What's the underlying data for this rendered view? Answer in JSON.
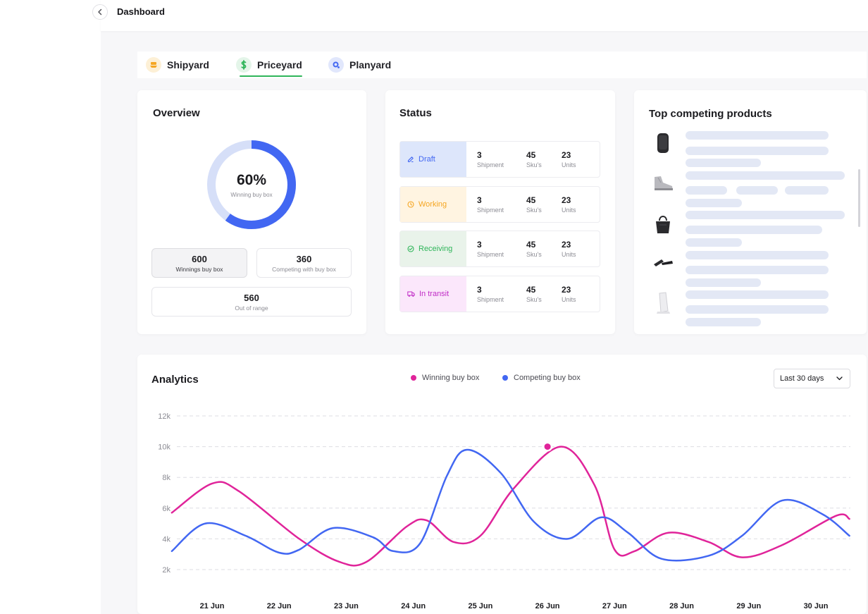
{
  "header": {
    "title": "Dashboard"
  },
  "tabs": [
    {
      "label": "Shipyard",
      "icon": "ship-icon",
      "color": "#f5a623"
    },
    {
      "label": "Priceyard",
      "icon": "dollar-icon",
      "color": "#2fb55a",
      "active": true
    },
    {
      "label": "Planyard",
      "icon": "plan-icon",
      "color": "#4267f2"
    }
  ],
  "overview": {
    "title": "Overview",
    "percent_label": "60%",
    "percent_value": 0.6,
    "percent_caption": "Winning buy box",
    "stats": [
      {
        "value": "600",
        "label": "Winnings buy box"
      },
      {
        "value": "360",
        "label": "Competing with buy box"
      },
      {
        "value": "560",
        "label": "Out of range"
      }
    ]
  },
  "status": {
    "title": "Status",
    "rows": [
      {
        "label": "Draft",
        "color": "#4267f2",
        "bg": "#dde6fb",
        "icon": "edit-icon",
        "shipment": "3",
        "shipment_label": "Shipment",
        "skus": "45",
        "skus_label": "Sku's",
        "units": "23",
        "units_label": "Units"
      },
      {
        "label": "Working",
        "color": "#f5a623",
        "bg": "#fff4e1",
        "icon": "clock-icon",
        "shipment": "3",
        "shipment_label": "Shipment",
        "skus": "45",
        "skus_label": "Sku's",
        "units": "23",
        "units_label": "Units"
      },
      {
        "label": "Receiving",
        "color": "#2fb55a",
        "bg": "#e9f3ea",
        "icon": "check-circle-icon",
        "shipment": "3",
        "shipment_label": "Shipment",
        "skus": "45",
        "skus_label": "Sku's",
        "units": "23",
        "units_label": "Units"
      },
      {
        "label": "In transit",
        "color": "#c02cc6",
        "bg": "#fbe7fb",
        "icon": "truck-icon",
        "shipment": "3",
        "shipment_label": "Shipment",
        "skus": "45",
        "skus_label": "Sku's",
        "units": "23",
        "units_label": "Units"
      }
    ]
  },
  "top_products": {
    "title": "Top competing products",
    "items": [
      {
        "icon": "speaker-icon"
      },
      {
        "icon": "shoe-icon"
      },
      {
        "icon": "handbag-icon"
      },
      {
        "icon": "remote-icon"
      },
      {
        "icon": "charger-icon"
      }
    ]
  },
  "analytics": {
    "title": "Analytics",
    "legend": [
      {
        "label": "Winning buy box",
        "color": "#e0249a"
      },
      {
        "label": "Competing buy box",
        "color": "#4267f2"
      }
    ],
    "range": "Last 30 days"
  },
  "chart_data": {
    "type": "line",
    "x": [
      "21 Jun",
      "22 Jun",
      "23 Jun",
      "24 Jun",
      "25 Jun",
      "26 Jun",
      "27 Jun",
      "28 Jun",
      "29 Jun",
      "30 Jun"
    ],
    "y_ticks": [
      "12k",
      "10k",
      "8k",
      "6k",
      "4k",
      "2k"
    ],
    "ylim": [
      2000,
      12000
    ],
    "grid": true,
    "highlight": {
      "series": 0,
      "x": "26 Jun",
      "y": 10000
    },
    "series": [
      {
        "name": "Winning buy box",
        "color": "#e0249a",
        "points": [
          [
            20.4,
            5700
          ],
          [
            21.0,
            7600
          ],
          [
            21.4,
            7100
          ],
          [
            22.3,
            4000
          ],
          [
            22.9,
            2500
          ],
          [
            23.3,
            2500
          ],
          [
            23.9,
            4800
          ],
          [
            24.2,
            5200
          ],
          [
            24.6,
            3800
          ],
          [
            25.0,
            4200
          ],
          [
            25.5,
            7300
          ],
          [
            26.2,
            10000
          ],
          [
            26.7,
            7500
          ],
          [
            27.0,
            3300
          ],
          [
            27.3,
            3200
          ],
          [
            27.8,
            4400
          ],
          [
            28.4,
            3800
          ],
          [
            28.9,
            2800
          ],
          [
            29.5,
            3600
          ],
          [
            30.3,
            5500
          ],
          [
            30.5,
            5300
          ]
        ]
      },
      {
        "name": "Competing buy box",
        "color": "#4267f2",
        "points": [
          [
            20.4,
            3200
          ],
          [
            20.9,
            5000
          ],
          [
            21.5,
            4200
          ],
          [
            22.0,
            3100
          ],
          [
            22.3,
            3300
          ],
          [
            22.8,
            4700
          ],
          [
            23.4,
            4100
          ],
          [
            23.7,
            3200
          ],
          [
            24.1,
            3700
          ],
          [
            24.5,
            8100
          ],
          [
            24.8,
            9800
          ],
          [
            25.3,
            8300
          ],
          [
            25.8,
            5100
          ],
          [
            26.3,
            4000
          ],
          [
            26.8,
            5400
          ],
          [
            27.2,
            4400
          ],
          [
            27.7,
            2700
          ],
          [
            28.4,
            2900
          ],
          [
            28.9,
            4200
          ],
          [
            29.5,
            6500
          ],
          [
            30.1,
            5600
          ],
          [
            30.5,
            4200
          ]
        ]
      }
    ]
  }
}
